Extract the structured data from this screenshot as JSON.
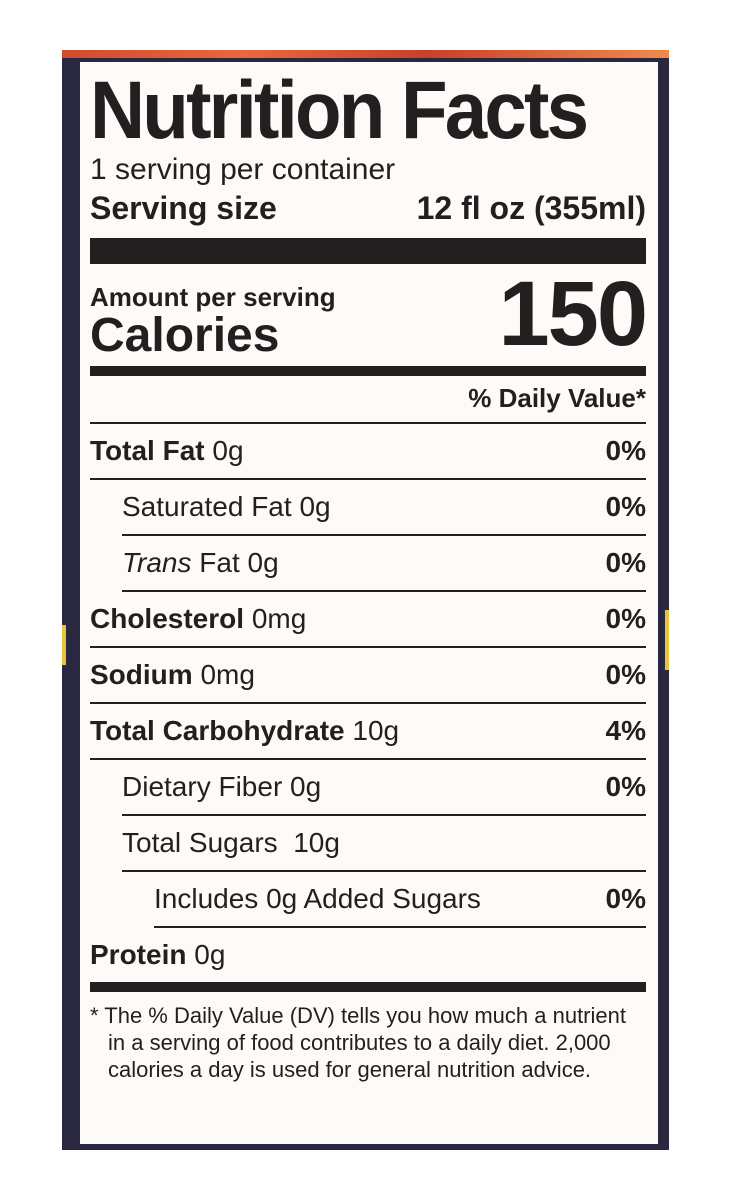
{
  "label": {
    "title": "Nutrition Facts",
    "servings_per_container": "1 serving per container",
    "serving_size_label": "Serving size",
    "serving_size_value": "12 fl oz (355ml)",
    "amount_per_serving": "Amount per serving",
    "calories_label": "Calories",
    "calories_value": "150",
    "daily_value_header": "% Daily Value*",
    "nutrients": [
      {
        "name": "Total Fat",
        "amount": "0g",
        "dv": "0%"
      },
      {
        "name": "Saturated Fat",
        "amount": "0g",
        "dv": "0%"
      },
      {
        "name": "Trans",
        "suffix": "Fat",
        "amount": "0g",
        "dv": "0%"
      },
      {
        "name": "Cholesterol",
        "amount": "0mg",
        "dv": "0%"
      },
      {
        "name": "Sodium",
        "amount": "0mg",
        "dv": "0%"
      },
      {
        "name": "Total Carbohydrate",
        "amount": "10g",
        "dv": "4%"
      },
      {
        "name": "Dietary Fiber",
        "amount": "0g",
        "dv": "0%"
      },
      {
        "name": "Total Sugars",
        "amount": "10g",
        "dv": ""
      },
      {
        "name": "Includes 0g Added Sugars",
        "amount": "",
        "dv": "0%"
      },
      {
        "name": "Protein",
        "amount": "0g",
        "dv": ""
      }
    ],
    "footnote": "* The % Daily Value (DV) tells you how much a nutrient in a serving of food contributes to a daily diet. 2,000 calories a day is used for general nutrition advice."
  },
  "colors": {
    "ink": "#231f20",
    "label_background": "#fdfbf8",
    "frame": "#2a2740",
    "frame_accent": "#d24a2e"
  }
}
